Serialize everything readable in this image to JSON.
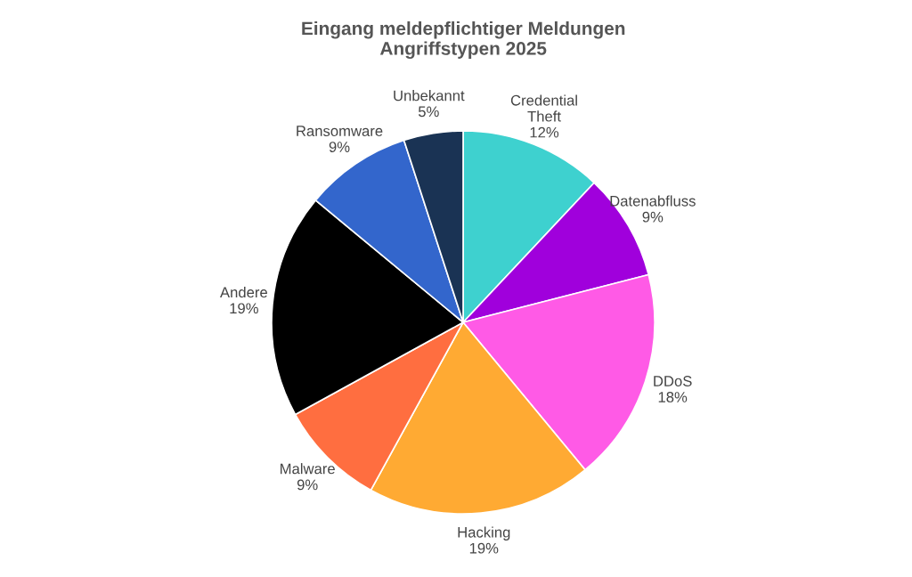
{
  "chart_data": {
    "type": "pie",
    "title": "Eingang meldepflichtiger Meldungen\nAngriffstypen 2025",
    "categories": [
      "Credential\nTheft",
      "Datenabfluss",
      "DDoS",
      "Hacking",
      "Malware",
      "Andere",
      "Ransomware",
      "Unbekannt"
    ],
    "values": [
      12,
      9,
      18,
      19,
      9,
      19,
      9,
      5
    ],
    "value_labels": [
      "12%",
      "9%",
      "18%",
      "19%",
      "9%",
      "19%",
      "9%",
      "5%"
    ],
    "colors": [
      "#3ed1cf",
      "#a000dc",
      "#ff5ae6",
      "#ffaa33",
      "#ff6e40",
      "#000000",
      "#3366cc",
      "#1a3354"
    ],
    "legend": false
  }
}
